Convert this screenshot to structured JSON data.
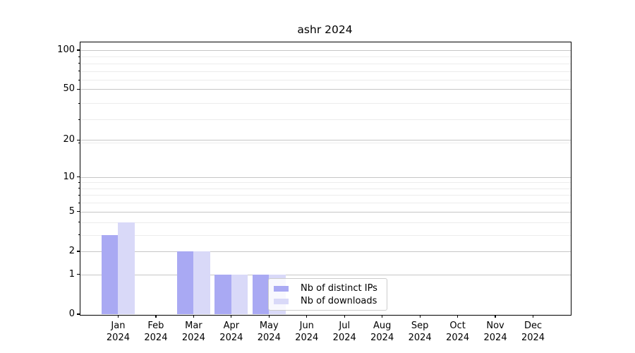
{
  "title": "ashr 2024",
  "chart_data": {
    "type": "bar",
    "title": "ashr 2024",
    "categories": [
      {
        "month": "Jan",
        "year": "2024"
      },
      {
        "month": "Feb",
        "year": "2024"
      },
      {
        "month": "Mar",
        "year": "2024"
      },
      {
        "month": "Apr",
        "year": "2024"
      },
      {
        "month": "May",
        "year": "2024"
      },
      {
        "month": "Jun",
        "year": "2024"
      },
      {
        "month": "Jul",
        "year": "2024"
      },
      {
        "month": "Aug",
        "year": "2024"
      },
      {
        "month": "Sep",
        "year": "2024"
      },
      {
        "month": "Oct",
        "year": "2024"
      },
      {
        "month": "Nov",
        "year": "2024"
      },
      {
        "month": "Dec",
        "year": "2024"
      }
    ],
    "series": [
      {
        "name": "Nb of distinct IPs",
        "color": "#a9a9f3",
        "values": [
          3,
          0,
          2,
          1,
          1,
          0,
          0,
          0,
          0,
          0,
          0,
          0
        ]
      },
      {
        "name": "Nb of downloads",
        "color": "#d9d9f8",
        "values": [
          4,
          0,
          2,
          1,
          1,
          0,
          0,
          0,
          0,
          0,
          0,
          0
        ]
      }
    ],
    "y_axis": {
      "scale": "log1p",
      "ticks": [
        0,
        1,
        2,
        5,
        10,
        20,
        50,
        100
      ],
      "minor_gridlines": [
        3,
        4,
        6,
        7,
        8,
        9,
        19,
        29,
        39,
        59,
        69,
        79,
        89
      ],
      "ylim_top": 115
    },
    "grid": "on",
    "legend_position": "inside-bottom-center",
    "colors": {
      "grid_major": "#c6c6c6",
      "grid_minor": "#ececec",
      "axis": "#000000",
      "legend_border": "#cccccc",
      "text": "#000000"
    }
  }
}
